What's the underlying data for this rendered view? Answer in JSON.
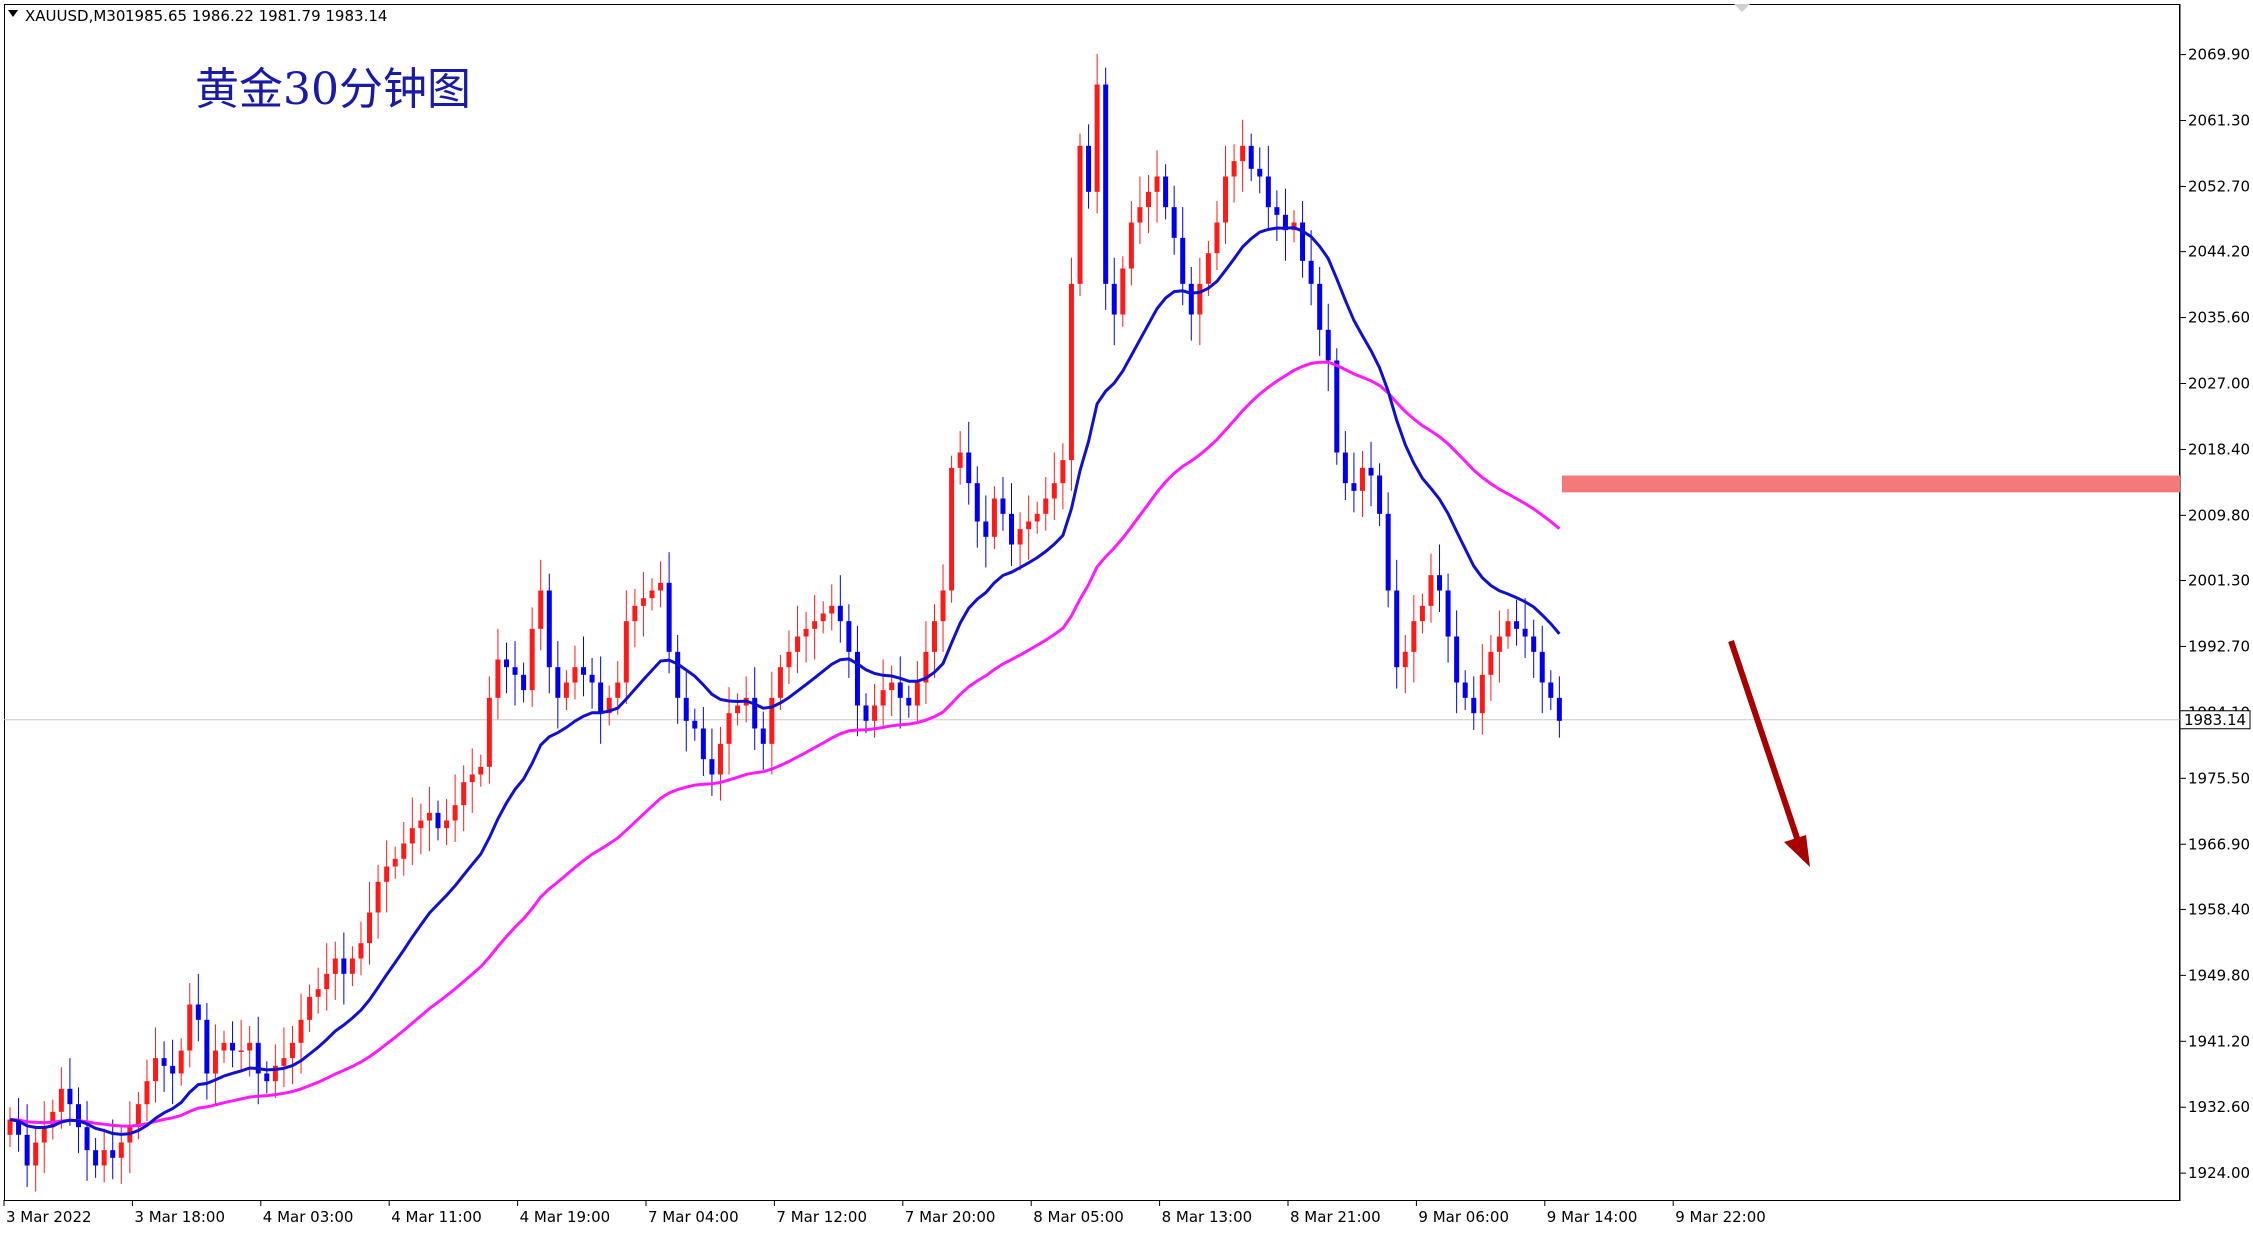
{
  "header": {
    "symbol": "XAUUSD,M30",
    "ohlc": "1985.65 1986.22 1981.79 1983.14"
  },
  "chart_title": "黄金30分钟图",
  "current_price_label": "1983.14",
  "colors": {
    "bull": "#ff1a1a",
    "bear": "#0000ee",
    "ma_fast": "#1010d0",
    "ma_slow": "#ff1aff",
    "zone": "#f47a7a",
    "arrow": "#a80000",
    "grid_price_line": "#c8c8c8"
  },
  "chart_data": {
    "type": "candlestick",
    "title": "黄金30分钟图",
    "ylim": [
      1920.5,
      2076.5
    ],
    "y_ticks": [
      "2069.90",
      "2061.30",
      "2052.70",
      "2044.20",
      "2035.60",
      "2027.00",
      "2018.40",
      "2009.80",
      "2001.30",
      "1992.70",
      "1984.10",
      "1975.50",
      "1966.90",
      "1958.40",
      "1949.80",
      "1941.20",
      "1932.60",
      "1924.00"
    ],
    "x_ticks": [
      "3 Mar 2022",
      "3 Mar 18:00",
      "4 Mar 03:00",
      "4 Mar 11:00",
      "4 Mar 19:00",
      "7 Mar 04:00",
      "7 Mar 12:00",
      "7 Mar 20:00",
      "8 Mar 05:00",
      "8 Mar 13:00",
      "8 Mar 21:00",
      "9 Mar 06:00",
      "9 Mar 14:00",
      "9 Mar 22:00"
    ],
    "current_price": 1983.14,
    "resistance_zone": [
      2012.8,
      2015.0
    ],
    "closes": [
      1931,
      1929,
      1925,
      1928,
      1930,
      1932,
      1935,
      1933,
      1930,
      1927,
      1925,
      1927,
      1926,
      1928,
      1930,
      1933,
      1936,
      1939,
      1938,
      1937,
      1940,
      1946,
      1944,
      1937,
      1940,
      1941,
      1940,
      1940,
      1941,
      1937,
      1936,
      1938,
      1939,
      1941,
      1944,
      1947,
      1948,
      1950,
      1952,
      1950,
      1952,
      1954,
      1958,
      1962,
      1964,
      1965,
      1967,
      1969,
      1970,
      1971,
      1969,
      1970,
      1972,
      1975,
      1976,
      1977,
      1986,
      1991,
      1990,
      1989,
      1987,
      1995,
      2000,
      1990,
      1986,
      1988,
      1990,
      1989,
      1988,
      1984,
      1986,
      1988,
      1996,
      1998,
      1999,
      2000,
      2001,
      1992,
      1986,
      1983,
      1982,
      1978,
      1976,
      1980,
      1984,
      1985,
      1986,
      1982,
      1980,
      1986,
      1990,
      1992,
      1994,
      1995,
      1996,
      1997,
      1998,
      1996,
      1992,
      1985,
      1983,
      1985,
      1987,
      1988,
      1986,
      1985,
      1988,
      1992,
      1996,
      2000,
      2016,
      2018,
      2014,
      2009,
      2007,
      2012,
      2010,
      2006,
      2008,
      2009,
      2010,
      2012,
      2014,
      2017,
      2040,
      2058,
      2052,
      2066,
      2040,
      2036,
      2042,
      2048,
      2050,
      2052,
      2054,
      2050,
      2046,
      2040,
      2036,
      2040,
      2044,
      2048,
      2054,
      2056,
      2058,
      2055,
      2054,
      2050,
      2049,
      2047,
      2048,
      2043,
      2040,
      2034,
      2030,
      2018,
      2014,
      2013,
      2016,
      2015,
      2010,
      2000,
      1990,
      1992,
      1996,
      1998,
      2002,
      2000,
      1994,
      1988,
      1986,
      1984,
      1989,
      1992,
      1994,
      1996,
      1995,
      1994,
      1992,
      1988,
      1986,
      1983
    ]
  }
}
